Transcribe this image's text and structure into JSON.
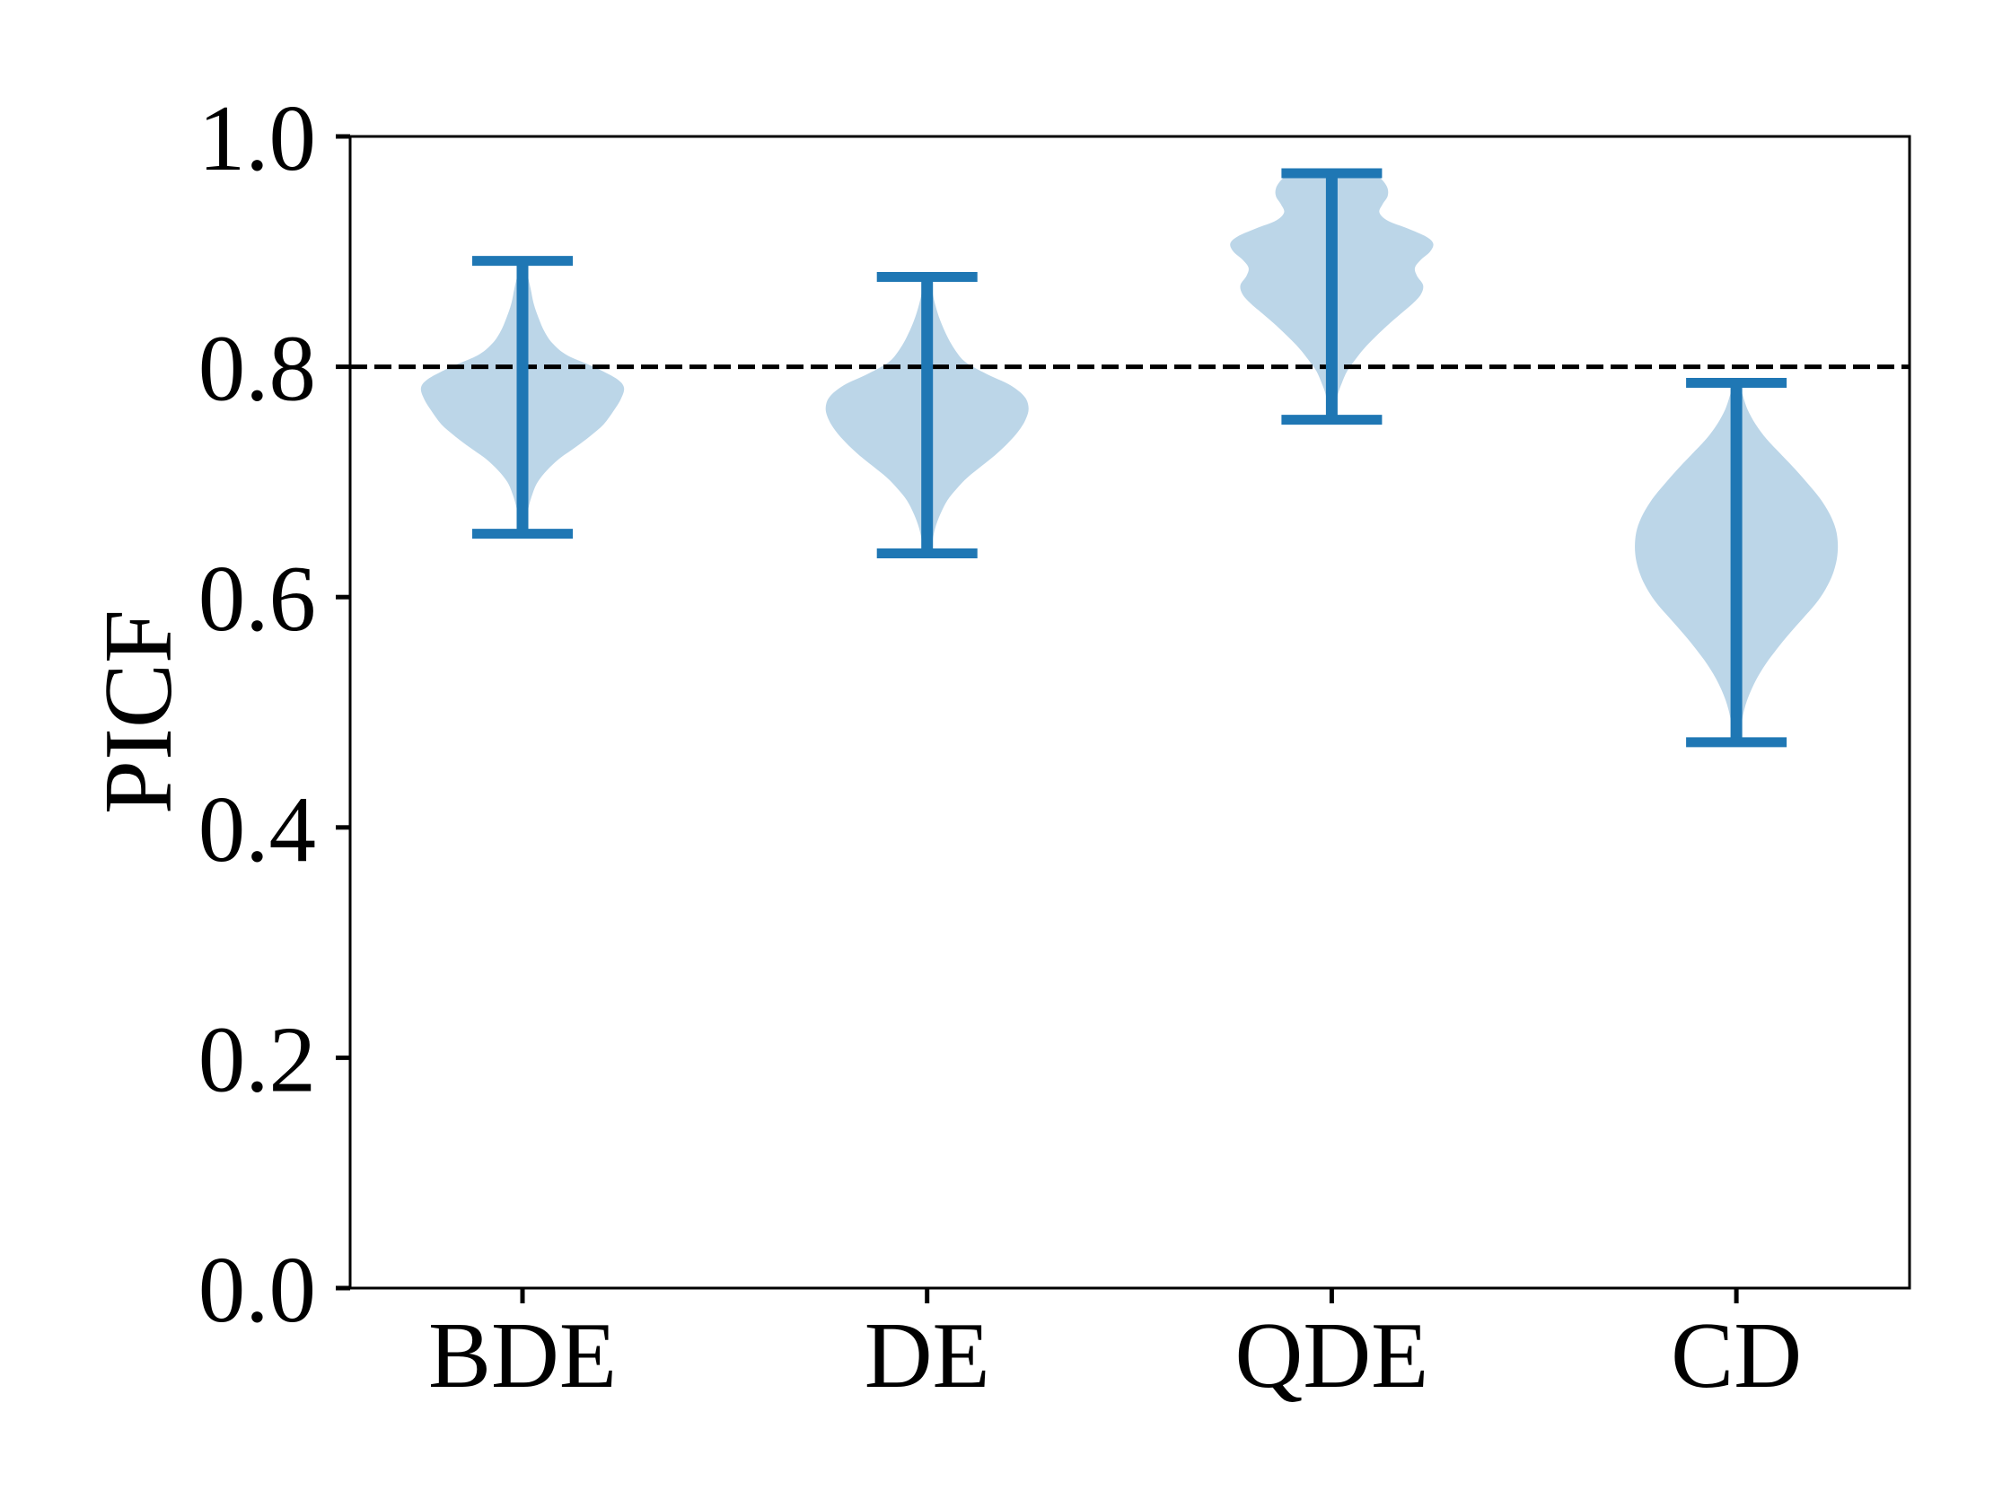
{
  "chart_data": {
    "type": "violin",
    "title": "",
    "xlabel": "",
    "ylabel": "PICF",
    "categories": [
      "BDE",
      "DE",
      "QDE",
      "CD"
    ],
    "ylim": [
      0.0,
      1.0
    ],
    "yticks": [
      0.0,
      0.2,
      0.4,
      0.6,
      0.8,
      1.0
    ],
    "ytick_labels": [
      "0.0",
      "0.2",
      "0.4",
      "0.6",
      "0.8",
      "1.0"
    ],
    "grid": false,
    "legend": "none",
    "reference_line": {
      "y": 0.8,
      "style": "dashed",
      "color": "#000000"
    },
    "colors": {
      "violin_fill": "#bcd6e8",
      "violin_line": "#1f77b4",
      "axis": "#000000"
    },
    "series": [
      {
        "name": "BDE",
        "min": 0.655,
        "max": 0.892,
        "mode": 0.782,
        "density": [
          [
            0.892,
            0.03
          ],
          [
            0.88,
            0.05
          ],
          [
            0.868,
            0.08
          ],
          [
            0.855,
            0.11
          ],
          [
            0.842,
            0.16
          ],
          [
            0.83,
            0.22
          ],
          [
            0.82,
            0.3
          ],
          [
            0.81,
            0.44
          ],
          [
            0.8,
            0.7
          ],
          [
            0.79,
            0.92
          ],
          [
            0.782,
            1.0
          ],
          [
            0.772,
            0.97
          ],
          [
            0.762,
            0.9
          ],
          [
            0.75,
            0.8
          ],
          [
            0.74,
            0.67
          ],
          [
            0.73,
            0.52
          ],
          [
            0.72,
            0.36
          ],
          [
            0.71,
            0.24
          ],
          [
            0.7,
            0.15
          ],
          [
            0.69,
            0.1
          ],
          [
            0.678,
            0.06
          ],
          [
            0.666,
            0.04
          ],
          [
            0.655,
            0.03
          ]
        ]
      },
      {
        "name": "DE",
        "min": 0.638,
        "max": 0.878,
        "mode": 0.764,
        "density": [
          [
            0.878,
            0.03
          ],
          [
            0.866,
            0.05
          ],
          [
            0.854,
            0.08
          ],
          [
            0.84,
            0.13
          ],
          [
            0.826,
            0.2
          ],
          [
            0.814,
            0.28
          ],
          [
            0.804,
            0.38
          ],
          [
            0.794,
            0.58
          ],
          [
            0.784,
            0.82
          ],
          [
            0.774,
            0.96
          ],
          [
            0.764,
            1.0
          ],
          [
            0.754,
            0.97
          ],
          [
            0.744,
            0.9
          ],
          [
            0.734,
            0.8
          ],
          [
            0.724,
            0.68
          ],
          [
            0.714,
            0.54
          ],
          [
            0.704,
            0.4
          ],
          [
            0.694,
            0.29
          ],
          [
            0.684,
            0.2
          ],
          [
            0.672,
            0.13
          ],
          [
            0.66,
            0.08
          ],
          [
            0.648,
            0.05
          ],
          [
            0.638,
            0.03
          ]
        ]
      },
      {
        "name": "QDE",
        "min": 0.754,
        "max": 0.968,
        "mode": 0.907,
        "density": [
          [
            0.968,
            0.42
          ],
          [
            0.962,
            0.5
          ],
          [
            0.955,
            0.55
          ],
          [
            0.948,
            0.55
          ],
          [
            0.941,
            0.5
          ],
          [
            0.934,
            0.47
          ],
          [
            0.927,
            0.55
          ],
          [
            0.92,
            0.75
          ],
          [
            0.913,
            0.93
          ],
          [
            0.907,
            1.0
          ],
          [
            0.9,
            0.97
          ],
          [
            0.893,
            0.88
          ],
          [
            0.886,
            0.82
          ],
          [
            0.879,
            0.84
          ],
          [
            0.871,
            0.9
          ],
          [
            0.863,
            0.88
          ],
          [
            0.855,
            0.8
          ],
          [
            0.846,
            0.68
          ],
          [
            0.836,
            0.55
          ],
          [
            0.826,
            0.43
          ],
          [
            0.816,
            0.32
          ],
          [
            0.806,
            0.23
          ],
          [
            0.796,
            0.15
          ],
          [
            0.786,
            0.1
          ],
          [
            0.776,
            0.06
          ],
          [
            0.765,
            0.04
          ],
          [
            0.754,
            0.02
          ]
        ]
      },
      {
        "name": "CD",
        "min": 0.474,
        "max": 0.786,
        "mode": 0.646,
        "density": [
          [
            0.786,
            0.03
          ],
          [
            0.776,
            0.06
          ],
          [
            0.763,
            0.11
          ],
          [
            0.75,
            0.19
          ],
          [
            0.737,
            0.3
          ],
          [
            0.724,
            0.44
          ],
          [
            0.711,
            0.58
          ],
          [
            0.698,
            0.71
          ],
          [
            0.685,
            0.83
          ],
          [
            0.672,
            0.92
          ],
          [
            0.659,
            0.98
          ],
          [
            0.646,
            1.0
          ],
          [
            0.633,
            0.99
          ],
          [
            0.62,
            0.95
          ],
          [
            0.607,
            0.88
          ],
          [
            0.594,
            0.78
          ],
          [
            0.581,
            0.65
          ],
          [
            0.568,
            0.52
          ],
          [
            0.555,
            0.4
          ],
          [
            0.542,
            0.29
          ],
          [
            0.529,
            0.2
          ],
          [
            0.516,
            0.13
          ],
          [
            0.503,
            0.08
          ],
          [
            0.49,
            0.05
          ],
          [
            0.474,
            0.03
          ]
        ]
      }
    ]
  }
}
